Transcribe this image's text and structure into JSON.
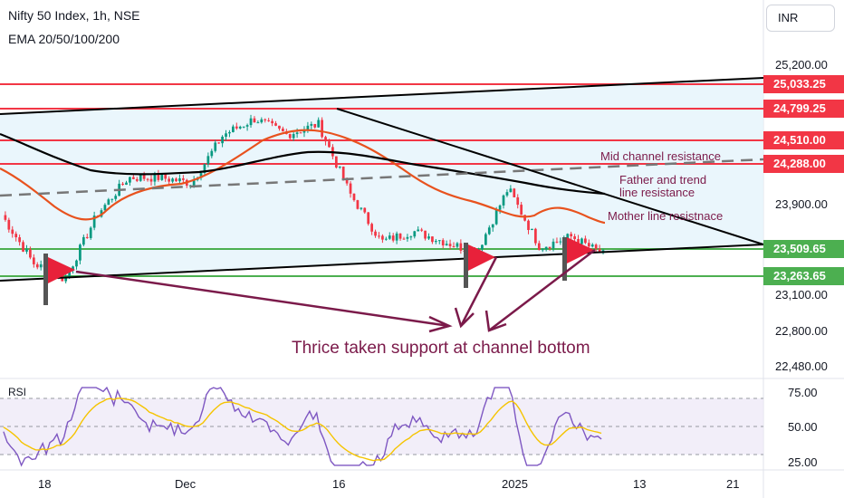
{
  "header": {
    "title": "Nifty 50 Index, 1h, NSE",
    "indicator": "EMA 20/50/100/200",
    "currency": "INR",
    "rsi_label": "RSI"
  },
  "price_axis": {
    "labels": [
      "25,200.00",
      "23,900.00",
      "23,100.00",
      "22,800.00",
      "22,480.00"
    ]
  },
  "price_badges": [
    {
      "text": "25,033.25",
      "color": "#f23645"
    },
    {
      "text": "24,799.25",
      "color": "#f23645"
    },
    {
      "text": "24,510.00",
      "color": "#f23645"
    },
    {
      "text": "24,288.00",
      "color": "#f23645"
    },
    {
      "text": "23,509.65",
      "color": "#4caf50"
    },
    {
      "text": "23,263.65",
      "color": "#4caf50"
    }
  ],
  "rsi_axis": {
    "labels": [
      "75.00",
      "50.00",
      "25.00"
    ]
  },
  "time_axis": {
    "labels": [
      "18",
      "Dec",
      "16",
      "2025",
      "13",
      "21"
    ]
  },
  "annotations": {
    "mid_channel": "Mid channel resistance",
    "father_line1": "Father and trend",
    "father_line2": "line resistance",
    "mother_line": "Mother line resistnace",
    "main": "Thrice taken support at channel bottom"
  },
  "chart_data": {
    "type": "line",
    "title": "Nifty 50 Index, 1h, NSE",
    "price_ylim": [
      22400,
      25400
    ],
    "rsi_ylim": [
      20,
      80
    ],
    "rsi_levels": [
      70,
      50,
      30
    ],
    "horizontal_levels": [
      {
        "value": 25033.25,
        "color": "#f23645"
      },
      {
        "value": 24799.25,
        "color": "#f23645"
      },
      {
        "value": 24510.0,
        "color": "#f23645"
      },
      {
        "value": 24288.0,
        "color": "#f23645"
      },
      {
        "value": 23509.65,
        "color": "#4caf50"
      },
      {
        "value": 23263.65,
        "color": "#4caf50"
      }
    ],
    "approx_price_path": [
      {
        "date": "Nov 13",
        "value": 23900
      },
      {
        "date": "Nov 18",
        "value": 23450
      },
      {
        "date": "Nov 21",
        "value": 23300
      },
      {
        "date": "Nov 22",
        "value": 23900
      },
      {
        "date": "Nov 25",
        "value": 24250
      },
      {
        "date": "Nov 27",
        "value": 24250
      },
      {
        "date": "Dec 2",
        "value": 24200
      },
      {
        "date": "Dec 5",
        "value": 24650
      },
      {
        "date": "Dec 9",
        "value": 24800
      },
      {
        "date": "Dec 13",
        "value": 24650
      },
      {
        "date": "Dec 16",
        "value": 24750
      },
      {
        "date": "Dec 19",
        "value": 24100
      },
      {
        "date": "Dec 20",
        "value": 23650
      },
      {
        "date": "Dec 26",
        "value": 23750
      },
      {
        "date": "Dec 30",
        "value": 23650
      },
      {
        "date": "Dec 31",
        "value": 23550
      },
      {
        "date": "Jan 3",
        "value": 24150
      },
      {
        "date": "Jan 6",
        "value": 23600
      },
      {
        "date": "Jan 8",
        "value": 23700
      },
      {
        "date": "Jan 9",
        "value": 23530
      }
    ],
    "colors": {
      "up_candle": "#089981",
      "down_candle": "#f23645",
      "ema_orange": "#e8521e",
      "ema_black": "#000000",
      "rsi_line": "#7e57c2",
      "rsi_ma": "#f5c400",
      "channel_fill": "#e6f4fb",
      "flag_red": "#e8213a",
      "arrow": "#7b1a4a"
    }
  }
}
